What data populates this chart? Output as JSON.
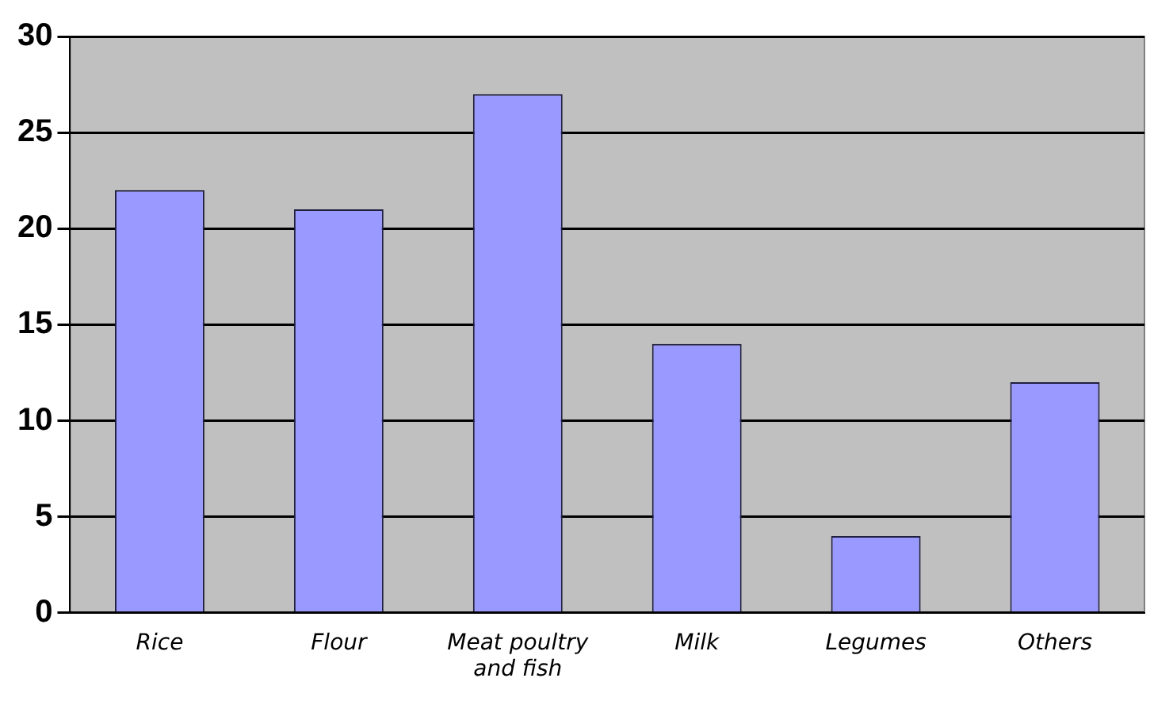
{
  "chart_data": {
    "type": "bar",
    "categories": [
      "Rice",
      "Flour",
      "Meat poultry and fish",
      "Milk",
      "Legumes",
      "Others"
    ],
    "values": [
      22,
      21,
      27,
      14,
      4,
      12
    ],
    "color": "#9999ff",
    "ylim": [
      0,
      30
    ],
    "yticks": [
      0,
      5,
      10,
      15,
      20,
      25,
      30
    ],
    "grid": "y",
    "legend": false
  }
}
